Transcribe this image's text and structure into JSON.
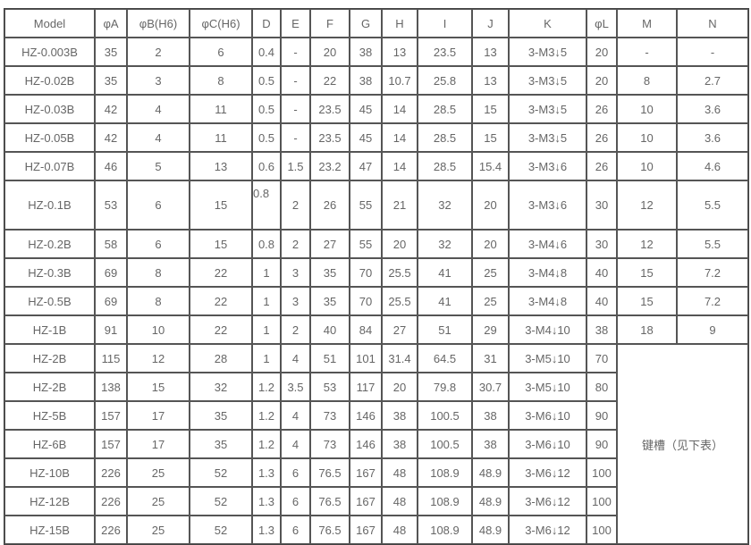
{
  "table": {
    "headers": [
      "Model",
      "φA",
      "φB(H6)",
      "φC(H6)",
      "D",
      "E",
      "F",
      "G",
      "H",
      "I",
      "J",
      "K",
      "φL",
      "M",
      "N"
    ],
    "rows": [
      [
        "HZ-0.003B",
        "35",
        "2",
        "6",
        "0.4",
        "-",
        "20",
        "38",
        "13",
        "23.5",
        "13",
        "3-M3↓5",
        "20",
        "-",
        "-"
      ],
      [
        "HZ-0.02B",
        "35",
        "3",
        "8",
        "0.5",
        "-",
        "22",
        "38",
        "10.7",
        "25.8",
        "13",
        "3-M3↓5",
        "20",
        "8",
        "2.7"
      ],
      [
        "HZ-0.03B",
        "42",
        "4",
        "11",
        "0.5",
        "-",
        "23.5",
        "45",
        "14",
        "28.5",
        "15",
        "3-M3↓5",
        "26",
        "10",
        "3.6"
      ],
      [
        "HZ-0.05B",
        "42",
        "4",
        "11",
        "0.5",
        "-",
        "23.5",
        "45",
        "14",
        "28.5",
        "15",
        "3-M3↓5",
        "26",
        "10",
        "3.6"
      ],
      [
        "HZ-0.07B",
        "46",
        "5",
        "13",
        "0.6",
        "1.5",
        "23.2",
        "47",
        "14",
        "28.5",
        "15.4",
        "3-M3↓6",
        "26",
        "10",
        "4.6"
      ],
      [
        "HZ-0.1B",
        "53",
        "6",
        "15",
        "0.8",
        "2",
        "26",
        "55",
        "21",
        "32",
        "20",
        "3-M3↓6",
        "30",
        "12",
        "5.5"
      ],
      [
        "HZ-0.2B",
        "58",
        "6",
        "15",
        "0.8",
        "2",
        "27",
        "55",
        "20",
        "32",
        "20",
        "3-M4↓6",
        "30",
        "12",
        "5.5"
      ],
      [
        "HZ-0.3B",
        "69",
        "8",
        "22",
        "1",
        "3",
        "35",
        "70",
        "25.5",
        "41",
        "25",
        "3-M4↓8",
        "40",
        "15",
        "7.2"
      ],
      [
        "HZ-0.5B",
        "69",
        "8",
        "22",
        "1",
        "3",
        "35",
        "70",
        "25.5",
        "41",
        "25",
        "3-M4↓8",
        "40",
        "15",
        "7.2"
      ],
      [
        "HZ-1B",
        "91",
        "10",
        "22",
        "1",
        "2",
        "40",
        "84",
        "27",
        "51",
        "29",
        "3-M4↓10",
        "38",
        "18",
        "9"
      ],
      [
        "HZ-2B",
        "115",
        "12",
        "28",
        "1",
        "4",
        "51",
        "101",
        "31.4",
        "64.5",
        "31",
        "3-M5↓10",
        "70"
      ],
      [
        "HZ-2B",
        "138",
        "15",
        "32",
        "1.2",
        "3.5",
        "53",
        "117",
        "20",
        "79.8",
        "30.7",
        "3-M5↓10",
        "80"
      ],
      [
        "HZ-5B",
        "157",
        "17",
        "35",
        "1.2",
        "4",
        "73",
        "146",
        "38",
        "100.5",
        "38",
        "3-M6↓10",
        "90"
      ],
      [
        "HZ-6B",
        "157",
        "17",
        "35",
        "1.2",
        "4",
        "73",
        "146",
        "38",
        "100.5",
        "38",
        "3-M6↓10",
        "90"
      ],
      [
        "HZ-10B",
        "226",
        "25",
        "52",
        "1.3",
        "6",
        "76.5",
        "167",
        "48",
        "108.9",
        "48.9",
        "3-M6↓12",
        "100"
      ],
      [
        "HZ-12B",
        "226",
        "25",
        "52",
        "1.3",
        "6",
        "76.5",
        "167",
        "48",
        "108.9",
        "48.9",
        "3-M6↓12",
        "100"
      ],
      [
        "HZ-15B",
        "226",
        "25",
        "52",
        "1.3",
        "6",
        "76.5",
        "167",
        "48",
        "108.9",
        "48.9",
        "3-M6↓12",
        "100"
      ]
    ],
    "merged_note": "键槽（见下表）"
  }
}
